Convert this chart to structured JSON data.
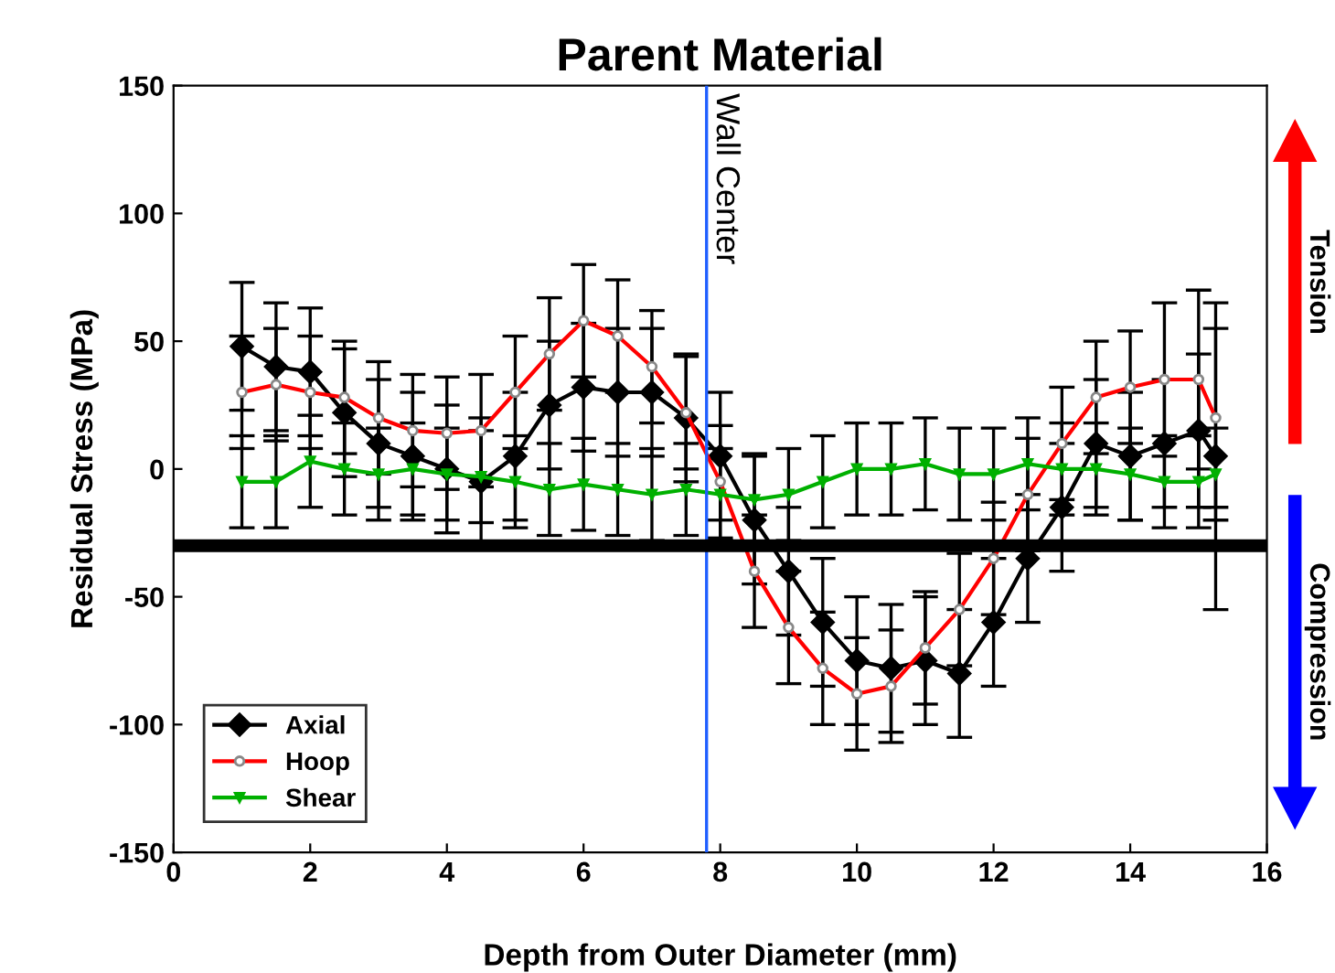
{
  "chart_data": {
    "type": "line",
    "title": "Parent Material",
    "xlabel": "Depth from Outer Diameter (mm)",
    "ylabel": "Residual Stress (MPa)",
    "x": [
      1.0,
      1.5,
      2.0,
      2.5,
      3.0,
      3.5,
      4.0,
      4.5,
      5.0,
      5.5,
      6.0,
      6.5,
      7.0,
      7.5,
      8.0,
      8.5,
      9.0,
      9.5,
      10.0,
      10.5,
      11.0,
      11.5,
      12.0,
      12.5,
      13.0,
      13.5,
      14.0,
      14.5,
      15.0,
      15.25
    ],
    "series": [
      {
        "name": "Axial",
        "color": "#000000",
        "marker": "diamond",
        "values": [
          48,
          40,
          38,
          22,
          10,
          5,
          0,
          -5,
          5,
          25,
          32,
          30,
          30,
          20,
          5,
          -20,
          -40,
          -60,
          -75,
          -78,
          -75,
          -80,
          -60,
          -35,
          -15,
          10,
          5,
          10,
          15,
          5
        ],
        "errors": [
          25,
          25,
          25,
          25,
          25,
          25,
          25,
          25,
          25,
          25,
          25,
          25,
          25,
          25,
          25,
          25,
          25,
          25,
          25,
          25,
          25,
          25,
          25,
          25,
          25,
          25,
          25,
          25,
          30,
          60
        ]
      },
      {
        "name": "Hoop",
        "color": "#ff0000",
        "marker": "circle",
        "values": [
          30,
          33,
          30,
          28,
          20,
          15,
          14,
          15,
          30,
          45,
          58,
          52,
          40,
          22,
          -5,
          -40,
          -62,
          -78,
          -88,
          -85,
          -70,
          -55,
          -35,
          -10,
          10,
          28,
          32,
          35,
          35,
          20
        ],
        "errors": [
          22,
          22,
          22,
          22,
          22,
          22,
          22,
          22,
          22,
          22,
          22,
          22,
          22,
          22,
          22,
          22,
          22,
          22,
          22,
          22,
          22,
          22,
          22,
          22,
          22,
          22,
          22,
          30,
          35,
          35
        ]
      },
      {
        "name": "Shear",
        "color": "#00b000",
        "marker": "triangle",
        "values": [
          -5,
          -5,
          3,
          0,
          -2,
          0,
          -2,
          -3,
          -5,
          -8,
          -6,
          -8,
          -10,
          -8,
          -10,
          -12,
          -10,
          -5,
          0,
          0,
          2,
          -2,
          -2,
          2,
          0,
          0,
          -2,
          -5,
          -5,
          -2
        ],
        "errors": [
          18,
          18,
          18,
          18,
          18,
          18,
          18,
          18,
          18,
          18,
          18,
          18,
          18,
          18,
          18,
          18,
          18,
          18,
          18,
          18,
          18,
          18,
          18,
          18,
          18,
          18,
          18,
          18,
          18,
          18
        ]
      }
    ],
    "xlim": [
      0,
      16
    ],
    "xticks": [
      0,
      2,
      4,
      6,
      8,
      10,
      12,
      14,
      16
    ],
    "ylim": [
      -150,
      150
    ],
    "yticks": [
      -150,
      -100,
      -50,
      0,
      50,
      100,
      150
    ],
    "ref_lines": [
      {
        "axis": "x",
        "value": 7.8,
        "label": "Wall Center",
        "color": "#1f5fff"
      },
      {
        "axis": "y",
        "value": -30,
        "label": null,
        "color": "#000000"
      }
    ],
    "annotations": [
      "Tension",
      "Compression"
    ],
    "legend": "bottom left",
    "grid": false
  }
}
